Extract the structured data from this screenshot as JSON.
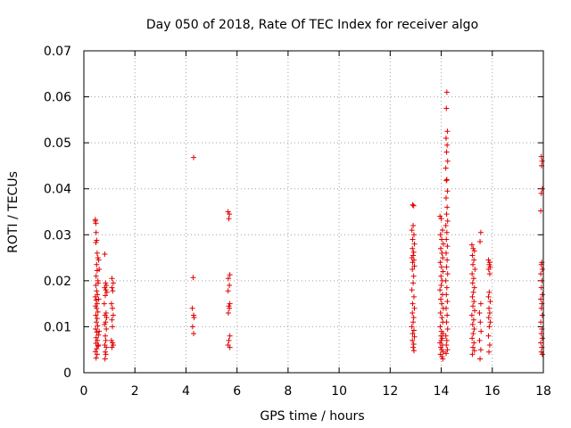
{
  "chart_data": {
    "type": "scatter",
    "title": "Day 050 of 2018, Rate Of TEC Index for receiver algo",
    "xlabel": "GPS time / hours",
    "ylabel": "ROTI / TECUs",
    "xlim": [
      0,
      18
    ],
    "ylim": [
      0,
      0.07
    ],
    "xticks": [
      "0",
      "2",
      "4",
      "6",
      "8",
      "10",
      "12",
      "14",
      "16",
      "18"
    ],
    "yticks": [
      "0",
      "0.01",
      "0.02",
      "0.03",
      "0.04",
      "0.05",
      "0.06",
      "0.07"
    ],
    "grid": true,
    "marker": "+",
    "color": "#e00000",
    "series": [
      {
        "points": [
          [
            0.45,
            0.033
          ],
          [
            0.45,
            0.0333
          ],
          [
            0.47,
            0.0325
          ],
          [
            0.48,
            0.0305
          ],
          [
            0.5,
            0.0288
          ],
          [
            0.47,
            0.0283
          ],
          [
            0.52,
            0.026
          ],
          [
            0.55,
            0.025
          ],
          [
            0.58,
            0.0245
          ],
          [
            0.5,
            0.0235
          ],
          [
            0.52,
            0.0222
          ],
          [
            0.48,
            0.021
          ],
          [
            0.55,
            0.02
          ],
          [
            0.47,
            0.019
          ],
          [
            0.5,
            0.0178
          ],
          [
            0.53,
            0.017
          ],
          [
            0.45,
            0.0165
          ],
          [
            0.48,
            0.0158
          ],
          [
            0.52,
            0.015
          ],
          [
            0.46,
            0.0145
          ],
          [
            0.5,
            0.014
          ],
          [
            0.55,
            0.0132
          ],
          [
            0.47,
            0.0125
          ],
          [
            0.52,
            0.0118
          ],
          [
            0.49,
            0.011
          ],
          [
            0.54,
            0.0102
          ],
          [
            0.46,
            0.0095
          ],
          [
            0.51,
            0.0088
          ],
          [
            0.57,
            0.0082
          ],
          [
            0.48,
            0.0076
          ],
          [
            0.53,
            0.007
          ],
          [
            0.47,
            0.0064
          ],
          [
            0.55,
            0.0058
          ],
          [
            0.5,
            0.0052
          ],
          [
            0.45,
            0.0046
          ],
          [
            0.52,
            0.004
          ],
          [
            0.48,
            0.0032
          ],
          [
            0.56,
            0.0195
          ],
          [
            0.6,
            0.0225
          ],
          [
            0.58,
            0.016
          ],
          [
            0.6,
            0.009
          ],
          [
            0.57,
            0.006
          ],
          [
            0.82,
            0.0258
          ],
          [
            0.85,
            0.0195
          ],
          [
            0.88,
            0.019
          ],
          [
            0.82,
            0.0185
          ],
          [
            0.86,
            0.018
          ],
          [
            0.9,
            0.0175
          ],
          [
            0.84,
            0.0168
          ],
          [
            0.8,
            0.015
          ],
          [
            0.87,
            0.013
          ],
          [
            0.83,
            0.0125
          ],
          [
            0.89,
            0.012
          ],
          [
            0.85,
            0.011
          ],
          [
            0.81,
            0.0105
          ],
          [
            0.88,
            0.0095
          ],
          [
            0.84,
            0.008
          ],
          [
            0.86,
            0.007
          ],
          [
            0.82,
            0.006
          ],
          [
            0.88,
            0.0055
          ],
          [
            0.84,
            0.0045
          ],
          [
            0.86,
            0.004
          ],
          [
            0.83,
            0.003
          ],
          [
            1.1,
            0.0205
          ],
          [
            1.15,
            0.0195
          ],
          [
            1.1,
            0.0185
          ],
          [
            1.13,
            0.0178
          ],
          [
            1.08,
            0.015
          ],
          [
            1.12,
            0.014
          ],
          [
            1.15,
            0.0125
          ],
          [
            1.1,
            0.0115
          ],
          [
            1.12,
            0.01
          ],
          [
            1.08,
            0.007
          ],
          [
            1.12,
            0.0065
          ],
          [
            1.15,
            0.006
          ],
          [
            1.1,
            0.0055
          ],
          [
            4.3,
            0.0468
          ],
          [
            4.28,
            0.0207
          ],
          [
            4.25,
            0.014
          ],
          [
            4.3,
            0.0125
          ],
          [
            4.32,
            0.012
          ],
          [
            4.26,
            0.01
          ],
          [
            4.3,
            0.0085
          ],
          [
            5.65,
            0.035
          ],
          [
            5.7,
            0.0345
          ],
          [
            5.68,
            0.0335
          ],
          [
            5.72,
            0.0213
          ],
          [
            5.66,
            0.0205
          ],
          [
            5.7,
            0.019
          ],
          [
            5.65,
            0.0178
          ],
          [
            5.72,
            0.015
          ],
          [
            5.68,
            0.0145
          ],
          [
            5.7,
            0.014
          ],
          [
            5.66,
            0.013
          ],
          [
            5.72,
            0.008
          ],
          [
            5.68,
            0.007
          ],
          [
            5.65,
            0.006
          ],
          [
            5.72,
            0.0055
          ],
          [
            12.88,
            0.0365
          ],
          [
            12.92,
            0.0363
          ],
          [
            12.9,
            0.032
          ],
          [
            12.85,
            0.031
          ],
          [
            12.93,
            0.03
          ],
          [
            12.88,
            0.029
          ],
          [
            12.95,
            0.028
          ],
          [
            12.87,
            0.027
          ],
          [
            12.92,
            0.0262
          ],
          [
            12.9,
            0.0255
          ],
          [
            12.85,
            0.025
          ],
          [
            12.93,
            0.0245
          ],
          [
            12.88,
            0.024
          ],
          [
            12.95,
            0.0232
          ],
          [
            12.87,
            0.0225
          ],
          [
            12.92,
            0.021
          ],
          [
            12.9,
            0.0195
          ],
          [
            12.85,
            0.018
          ],
          [
            12.93,
            0.0165
          ],
          [
            12.88,
            0.015
          ],
          [
            12.95,
            0.014
          ],
          [
            12.87,
            0.013
          ],
          [
            12.92,
            0.012
          ],
          [
            12.9,
            0.011
          ],
          [
            12.85,
            0.01
          ],
          [
            12.93,
            0.0092
          ],
          [
            12.88,
            0.0085
          ],
          [
            12.95,
            0.0078
          ],
          [
            12.87,
            0.007
          ],
          [
            12.92,
            0.0062
          ],
          [
            12.9,
            0.0055
          ],
          [
            12.93,
            0.0048
          ],
          [
            13.95,
            0.034
          ],
          [
            14.0,
            0.0335
          ],
          [
            14.05,
            0.031
          ],
          [
            13.97,
            0.03
          ],
          [
            14.02,
            0.029
          ],
          [
            14.08,
            0.028
          ],
          [
            13.98,
            0.027
          ],
          [
            14.03,
            0.026
          ],
          [
            14.06,
            0.025
          ],
          [
            13.96,
            0.024
          ],
          [
            14.01,
            0.023
          ],
          [
            14.07,
            0.022
          ],
          [
            13.99,
            0.021
          ],
          [
            14.04,
            0.02
          ],
          [
            14.0,
            0.019
          ],
          [
            13.95,
            0.018
          ],
          [
            14.05,
            0.017
          ],
          [
            13.98,
            0.016
          ],
          [
            14.02,
            0.015
          ],
          [
            14.08,
            0.014
          ],
          [
            13.97,
            0.013
          ],
          [
            14.03,
            0.012
          ],
          [
            14.06,
            0.011
          ],
          [
            13.96,
            0.01
          ],
          [
            14.01,
            0.009
          ],
          [
            14.07,
            0.0085
          ],
          [
            13.99,
            0.008
          ],
          [
            14.04,
            0.0075
          ],
          [
            14.0,
            0.007
          ],
          [
            13.95,
            0.0065
          ],
          [
            14.05,
            0.006
          ],
          [
            13.98,
            0.0055
          ],
          [
            14.02,
            0.005
          ],
          [
            14.08,
            0.0045
          ],
          [
            13.97,
            0.004
          ],
          [
            14.03,
            0.0035
          ],
          [
            14.06,
            0.003
          ],
          [
            14.22,
            0.061
          ],
          [
            14.2,
            0.0575
          ],
          [
            14.24,
            0.0525
          ],
          [
            14.19,
            0.051
          ],
          [
            14.23,
            0.0495
          ],
          [
            14.21,
            0.048
          ],
          [
            14.25,
            0.046
          ],
          [
            14.18,
            0.0445
          ],
          [
            14.22,
            0.042
          ],
          [
            14.2,
            0.0418
          ],
          [
            14.24,
            0.0395
          ],
          [
            14.19,
            0.038
          ],
          [
            14.23,
            0.036
          ],
          [
            14.21,
            0.0345
          ],
          [
            14.25,
            0.033
          ],
          [
            14.18,
            0.032
          ],
          [
            14.22,
            0.0305
          ],
          [
            14.2,
            0.029
          ],
          [
            14.24,
            0.0275
          ],
          [
            14.19,
            0.026
          ],
          [
            14.23,
            0.0245
          ],
          [
            14.21,
            0.023
          ],
          [
            14.25,
            0.0215
          ],
          [
            14.18,
            0.02
          ],
          [
            14.22,
            0.0185
          ],
          [
            14.2,
            0.017
          ],
          [
            14.24,
            0.0155
          ],
          [
            14.19,
            0.014
          ],
          [
            14.23,
            0.0125
          ],
          [
            14.21,
            0.011
          ],
          [
            14.25,
            0.0095
          ],
          [
            14.18,
            0.008
          ],
          [
            14.22,
            0.007
          ],
          [
            14.2,
            0.006
          ],
          [
            14.24,
            0.005
          ],
          [
            14.19,
            0.0042
          ],
          [
            15.2,
            0.0278
          ],
          [
            15.25,
            0.027
          ],
          [
            15.3,
            0.0265
          ],
          [
            15.22,
            0.0255
          ],
          [
            15.28,
            0.0245
          ],
          [
            15.24,
            0.0235
          ],
          [
            15.32,
            0.0225
          ],
          [
            15.21,
            0.0215
          ],
          [
            15.27,
            0.0205
          ],
          [
            15.23,
            0.0195
          ],
          [
            15.3,
            0.0185
          ],
          [
            15.26,
            0.0175
          ],
          [
            15.22,
            0.0165
          ],
          [
            15.28,
            0.0155
          ],
          [
            15.24,
            0.0145
          ],
          [
            15.31,
            0.0135
          ],
          [
            15.2,
            0.0125
          ],
          [
            15.27,
            0.0115
          ],
          [
            15.23,
            0.0105
          ],
          [
            15.29,
            0.0095
          ],
          [
            15.25,
            0.0085
          ],
          [
            15.21,
            0.0075
          ],
          [
            15.28,
            0.0065
          ],
          [
            15.24,
            0.0055
          ],
          [
            15.3,
            0.0048
          ],
          [
            15.22,
            0.004
          ],
          [
            15.55,
            0.0305
          ],
          [
            15.52,
            0.0285
          ],
          [
            15.55,
            0.015
          ],
          [
            15.5,
            0.013
          ],
          [
            15.53,
            0.011
          ],
          [
            15.56,
            0.009
          ],
          [
            15.5,
            0.007
          ],
          [
            15.55,
            0.005
          ],
          [
            15.52,
            0.003
          ],
          [
            15.85,
            0.0245
          ],
          [
            15.9,
            0.024
          ],
          [
            15.88,
            0.0235
          ],
          [
            15.92,
            0.023
          ],
          [
            15.86,
            0.0225
          ],
          [
            15.9,
            0.0215
          ],
          [
            15.88,
            0.0175
          ],
          [
            15.85,
            0.0165
          ],
          [
            15.92,
            0.0155
          ],
          [
            15.87,
            0.014
          ],
          [
            15.9,
            0.013
          ],
          [
            15.86,
            0.012
          ],
          [
            15.92,
            0.011
          ],
          [
            15.88,
            0.01
          ],
          [
            15.85,
            0.008
          ],
          [
            15.9,
            0.006
          ],
          [
            15.87,
            0.0045
          ],
          [
            17.92,
            0.047
          ],
          [
            17.95,
            0.046
          ],
          [
            17.93,
            0.045
          ],
          [
            17.96,
            0.04
          ],
          [
            17.92,
            0.039
          ],
          [
            17.9,
            0.0352
          ],
          [
            17.94,
            0.024
          ],
          [
            17.92,
            0.0235
          ],
          [
            17.96,
            0.0225
          ],
          [
            17.9,
            0.0215
          ],
          [
            17.94,
            0.02
          ],
          [
            17.92,
            0.0185
          ],
          [
            17.96,
            0.017
          ],
          [
            17.9,
            0.016
          ],
          [
            17.94,
            0.015
          ],
          [
            17.92,
            0.014
          ],
          [
            17.96,
            0.0125
          ],
          [
            17.9,
            0.011
          ],
          [
            17.94,
            0.0095
          ],
          [
            17.92,
            0.0085
          ],
          [
            17.96,
            0.0075
          ],
          [
            17.9,
            0.0065
          ],
          [
            17.94,
            0.0055
          ],
          [
            17.92,
            0.0045
          ],
          [
            17.96,
            0.004
          ]
        ]
      }
    ]
  }
}
